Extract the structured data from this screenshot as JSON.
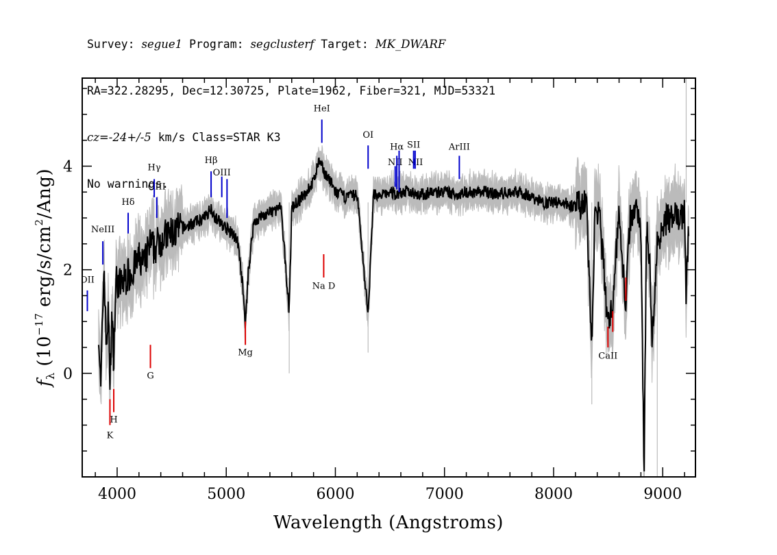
{
  "header": {
    "line1": {
      "survey_label": "Survey: ",
      "survey": "segue1",
      "program_label": " Program: ",
      "program": "segclusterf",
      "target_label": " Target: ",
      "target": "MK_DWARF"
    },
    "line2": "RA=322.28295, Dec=12.30725, Plate=1962, Fiber=321, MJD=53321",
    "line3": {
      "cz_label": "cz=",
      "cz_value": "-24+/-5",
      "cz_unit": " km/s Class=STAR K3"
    },
    "line4": "No warnings."
  },
  "chart_data": {
    "type": "line",
    "title": "",
    "xlabel": "Wavelength (Angstroms)",
    "ylabel_parts": {
      "f": "f",
      "sub": "λ",
      "pre": " (10",
      "exp": "−17",
      "mid": " erg/s/cm",
      "exp2": "2",
      "post": "/Ang)"
    },
    "xlim": [
      3680,
      9300
    ],
    "ylim": [
      -2.0,
      5.7
    ],
    "x_ticks": [
      4000,
      5000,
      6000,
      7000,
      8000,
      9000
    ],
    "x_tick_labels": [
      "4000",
      "5000",
      "6000",
      "7000",
      "8000",
      "9000"
    ],
    "x_minor_step": 200,
    "y_ticks": [
      0,
      2,
      4
    ],
    "y_tick_labels": [
      "0",
      "2",
      "4"
    ],
    "y_minor_step": 0.5,
    "grid": false,
    "series": [
      {
        "color": "#000000",
        "x": [
          3730,
          3800,
          3830,
          3850,
          3870,
          3880,
          3900,
          3920,
          3934,
          3950,
          3968,
          3990,
          4030,
          4101,
          4150,
          4200,
          4250,
          4300,
          4340,
          4400,
          4500,
          4600,
          4700,
          4800,
          4861,
          4900,
          5000,
          5100,
          5150,
          5175,
          5200,
          5250,
          5300,
          5400,
          5500,
          5577,
          5600,
          5700,
          5800,
          5850,
          5893,
          5930,
          6000,
          6100,
          6200,
          6300,
          6350,
          6400,
          6500,
          6563,
          6600,
          6700,
          6800,
          6900,
          7000,
          7100,
          7200,
          7300,
          7400,
          7500,
          7600,
          7700,
          7800,
          7900,
          8000,
          8100,
          8200,
          8300,
          8350,
          8380,
          8420,
          8498,
          8542,
          8600,
          8662,
          8700,
          8760,
          8800,
          8830,
          8850,
          8880,
          8900,
          8950,
          9000,
          9050,
          9100,
          9150,
          9200,
          9215,
          9240
        ],
        "values": [
          null,
          null,
          0.9,
          -0.4,
          1.4,
          2.1,
          0.5,
          1.2,
          -0.2,
          1.1,
          0.3,
          1.8,
          1.7,
          1.9,
          2.0,
          2.2,
          2.1,
          2.5,
          2.4,
          2.6,
          2.7,
          2.8,
          2.9,
          3.0,
          3.2,
          3.0,
          2.8,
          2.6,
          1.7,
          0.9,
          1.9,
          2.9,
          3.0,
          3.1,
          3.2,
          1.2,
          3.2,
          3.4,
          3.7,
          4.1,
          3.9,
          3.8,
          3.5,
          3.4,
          3.45,
          1.1,
          3.5,
          3.4,
          3.5,
          3.45,
          3.5,
          3.5,
          3.45,
          3.5,
          3.5,
          3.45,
          3.5,
          3.5,
          3.5,
          3.45,
          3.5,
          3.5,
          3.4,
          3.3,
          3.3,
          3.3,
          3.2,
          3.3,
          0.5,
          3.2,
          3.1,
          0.9,
          1.4,
          3.1,
          1.3,
          3.0,
          3.2,
          2.9,
          -2.0,
          2.8,
          2.3,
          0.5,
          2.5,
          2.9,
          3.0,
          3.0,
          3.0,
          3.1,
          1.5,
          3.0
        ]
      }
    ],
    "emission_lines": [
      {
        "label": "OII",
        "x": 3727,
        "ystart": 1.2,
        "yend": 1.6,
        "text_y": 1.75
      },
      {
        "label": "NeIII",
        "x": 3869,
        "ystart": 2.1,
        "yend": 2.55,
        "text_y": 2.72
      },
      {
        "label": "Hδ",
        "x": 4101,
        "ystart": 2.7,
        "yend": 3.1,
        "text_y": 3.25
      },
      {
        "label": "OIII",
        "x": 4363,
        "ystart": 3.0,
        "yend": 3.4,
        "text_y": 3.55
      },
      {
        "label": "Hγ",
        "x": 4340,
        "ystart": 3.4,
        "yend": 3.75,
        "text_y": 3.92
      },
      {
        "label": "Hβ",
        "x": 4861,
        "ystart": 3.4,
        "yend": 3.9,
        "text_y": 4.06
      },
      {
        "label": "OIII",
        "x": 4959,
        "ystart": 3.4,
        "yend": 3.8,
        "text_y": 3.82
      },
      {
        "label": "",
        "x": 5007,
        "ystart": 3.0,
        "yend": 3.75,
        "text_y": null
      },
      {
        "label": "HeI",
        "x": 5876,
        "ystart": 4.45,
        "yend": 4.9,
        "text_y": 5.06
      },
      {
        "label": "OI",
        "x": 6300,
        "ystart": 3.95,
        "yend": 4.4,
        "text_y": 4.55
      },
      {
        "label": "NII",
        "x": 6548,
        "ystart": 3.6,
        "yend": 4.0,
        "text_y": 4.02
      },
      {
        "label": "Hα",
        "x": 6563,
        "ystart": 3.55,
        "yend": 4.2,
        "text_y": 4.32
      },
      {
        "label": "",
        "x": 6584,
        "ystart": 3.5,
        "yend": 4.0,
        "text_y": null
      },
      {
        "label": "NII",
        "x": 6584,
        "ystart": 3.7,
        "yend": 4.3,
        "text_y": 4.02,
        "label_x_offset": 24
      },
      {
        "label": "SII",
        "x": 6717,
        "ystart": 3.95,
        "yend": 4.3,
        "text_y": 4.36
      },
      {
        "label": "",
        "x": 6731,
        "ystart": 3.95,
        "yend": 4.3,
        "text_y": null
      },
      {
        "label": "ArIII",
        "x": 7136,
        "ystart": 3.75,
        "yend": 4.2,
        "text_y": 4.32
      }
    ],
    "absorption_lines": [
      {
        "label": "K",
        "x": 3934,
        "ystart": -1.0,
        "yend": -0.5,
        "text_y": -1.25
      },
      {
        "label": "H",
        "x": 3969,
        "ystart": -0.75,
        "yend": -0.3,
        "text_y": -0.95
      },
      {
        "label": "G",
        "x": 4305,
        "ystart": 0.1,
        "yend": 0.55,
        "text_y": -0.1
      },
      {
        "label": "Mg",
        "x": 5175,
        "ystart": 0.55,
        "yend": 1.0,
        "text_y": 0.35
      },
      {
        "label": "Na D",
        "x": 5893,
        "ystart": 1.85,
        "yend": 2.3,
        "text_y": 1.63
      },
      {
        "label": "CaII",
        "x": 8498,
        "ystart": 0.5,
        "yend": 0.9,
        "text_y": 0.28
      },
      {
        "label": "",
        "x": 8542,
        "ystart": 0.8,
        "yend": 1.2,
        "text_y": null
      },
      {
        "label": "",
        "x": 8662,
        "ystart": 1.4,
        "yend": 1.85,
        "text_y": null
      }
    ],
    "colors": {
      "flux": "#000000",
      "error": "#bbbbbb",
      "emission": "#0000cc",
      "absorption": "#dd0000"
    }
  }
}
